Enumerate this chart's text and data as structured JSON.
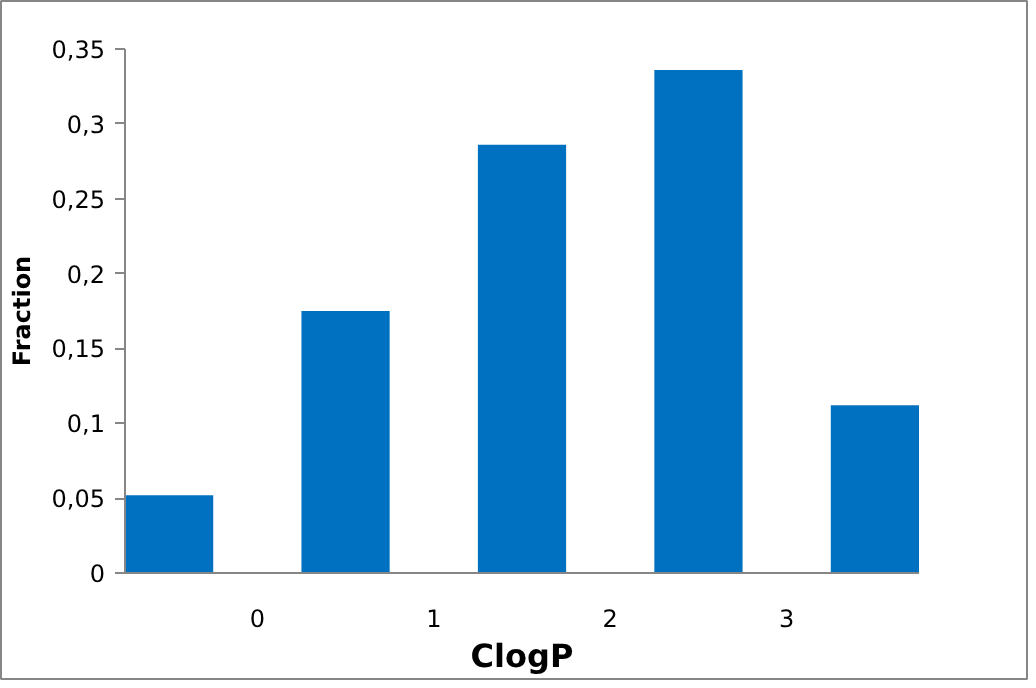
{
  "chart_data": {
    "type": "bar",
    "xlabel": "ClogP",
    "ylabel": "Fraction",
    "x": [
      -0.5,
      0.5,
      1.5,
      2.5,
      3.5
    ],
    "values": [
      0.052,
      0.175,
      0.286,
      0.336,
      0.112
    ],
    "color": "#0070c0",
    "xlim": [
      -0.75,
      3.75
    ],
    "xticks": [
      0,
      1,
      2,
      3
    ],
    "ylim": [
      0,
      0.35
    ],
    "yticks": [
      {
        "value": 0,
        "label": "0"
      },
      {
        "value": 0.05,
        "label": "0,05"
      },
      {
        "value": 0.1,
        "label": "0,1"
      },
      {
        "value": 0.15,
        "label": "0,15"
      },
      {
        "value": 0.2,
        "label": "0,2"
      },
      {
        "value": 0.25,
        "label": "0,25"
      },
      {
        "value": 0.3,
        "label": "0,3"
      },
      {
        "value": 0.35,
        "label": "0,35"
      }
    ],
    "grid": false
  }
}
